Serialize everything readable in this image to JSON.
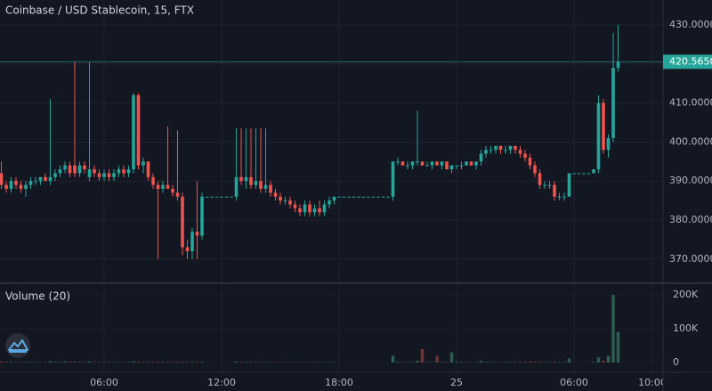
{
  "chart_data": {
    "type": "candlestick",
    "title": "Coinbase / USD Stablecoin, 15, FTX",
    "volume_title": "Volume (20)",
    "up_color": "#26a69a",
    "down_color": "#ef5350",
    "volume_up_color": "#2b5c4e",
    "volume_down_color": "#6b3338",
    "grid": true,
    "categories": [
      null,
      null,
      null,
      null,
      null,
      null,
      null,
      null,
      null,
      null,
      null,
      null,
      null,
      null,
      null,
      null,
      null,
      null,
      null,
      null,
      null,
      "06:00",
      null,
      null,
      null,
      null,
      null,
      null,
      null,
      null,
      null,
      null,
      null,
      null,
      null,
      null,
      null,
      null,
      null,
      null,
      null,
      null,
      null,
      null,
      null,
      "12:00",
      null,
      null,
      null,
      null,
      null,
      null,
      null,
      null,
      null,
      null,
      null,
      null,
      null,
      null,
      null,
      null,
      null,
      null,
      null,
      null,
      null,
      null,
      null,
      "18:00",
      null,
      null,
      null,
      null,
      null,
      null,
      null,
      null,
      null,
      null,
      null,
      null,
      null,
      null,
      null,
      null,
      null,
      null,
      null,
      null,
      null,
      null,
      null,
      "25",
      null,
      null,
      null,
      null,
      null,
      null,
      null,
      null,
      null,
      null,
      null,
      null,
      null,
      null,
      null,
      null,
      null,
      null,
      null,
      null,
      null,
      null,
      null,
      "06:00",
      null,
      null,
      null,
      null,
      null,
      null,
      null,
      null,
      null,
      null,
      null,
      null,
      null,
      null,
      null,
      "10:00"
    ],
    "ohlc": [
      [
        392,
        395,
        388,
        389
      ],
      [
        389,
        390,
        387,
        388
      ],
      [
        388,
        391,
        387,
        390
      ],
      [
        390,
        391,
        388,
        389
      ],
      [
        389,
        390,
        387,
        388
      ],
      [
        388,
        390,
        386,
        389
      ],
      [
        389,
        391,
        388,
        390
      ],
      [
        390,
        391,
        389,
        390
      ],
      [
        390,
        391,
        389,
        391
      ],
      [
        391,
        392,
        390,
        390
      ],
      [
        390,
        411,
        389,
        391
      ],
      [
        391,
        393,
        390,
        392
      ],
      [
        392,
        394,
        391,
        393
      ],
      [
        393,
        395,
        392,
        394
      ],
      [
        394,
        395,
        391,
        392
      ],
      [
        394,
        420.5,
        391,
        392
      ],
      [
        392,
        395,
        391,
        394
      ],
      [
        394,
        395,
        392,
        393
      ],
      [
        391,
        420.5,
        390,
        393
      ],
      [
        393,
        394,
        391,
        392
      ],
      [
        392,
        393,
        390,
        391
      ],
      [
        391,
        393,
        390,
        392
      ],
      [
        392,
        393,
        390,
        391
      ],
      [
        391,
        393,
        390,
        392
      ],
      [
        392,
        394,
        391,
        393
      ],
      [
        393,
        394,
        391,
        392
      ],
      [
        392,
        394,
        391,
        393
      ],
      [
        393,
        412.5,
        392,
        412
      ],
      [
        412,
        412.5,
        393,
        394
      ],
      [
        394,
        396,
        392,
        395
      ],
      [
        395,
        395,
        390,
        391
      ],
      [
        391,
        392,
        388,
        389
      ],
      [
        389,
        390,
        370,
        388
      ],
      [
        388,
        390,
        387,
        389
      ],
      [
        389,
        404,
        388,
        388
      ],
      [
        388,
        389,
        386,
        387
      ],
      [
        387,
        403,
        385,
        386
      ],
      [
        386,
        387,
        371,
        373
      ],
      [
        373,
        375,
        370,
        372
      ],
      [
        372,
        378,
        370,
        377
      ],
      [
        377,
        390,
        370,
        376
      ],
      [
        376,
        387,
        375,
        386
      ],
      [
        386,
        386,
        386,
        386
      ],
      [
        386,
        386,
        386,
        386
      ],
      [
        386,
        386,
        386,
        386
      ],
      [
        386,
        386,
        386,
        386
      ],
      [
        386,
        386,
        386,
        386
      ],
      [
        386,
        386,
        386,
        386
      ],
      [
        386,
        403.5,
        385,
        391
      ],
      [
        391,
        403.5,
        389,
        390
      ],
      [
        390,
        403.5,
        388,
        391
      ],
      [
        391,
        403.5,
        388,
        389
      ],
      [
        389,
        403.5,
        388,
        390
      ],
      [
        390,
        403.5,
        387,
        388
      ],
      [
        388,
        403.5,
        387,
        389
      ],
      [
        389,
        390,
        386,
        387
      ],
      [
        387,
        388,
        385,
        386
      ],
      [
        386,
        387,
        384,
        385
      ],
      [
        385,
        386,
        384,
        385
      ],
      [
        385,
        386,
        383,
        384
      ],
      [
        384,
        385,
        382,
        383
      ],
      [
        383,
        384,
        381,
        382
      ],
      [
        382,
        385,
        381,
        384
      ],
      [
        384,
        385,
        381,
        382
      ],
      [
        382,
        384,
        381,
        383
      ],
      [
        383,
        385,
        381,
        382
      ],
      [
        382,
        385,
        381,
        384
      ],
      [
        384,
        386,
        383,
        385
      ],
      [
        385,
        386,
        384,
        386
      ],
      [
        386,
        386,
        386,
        386
      ],
      [
        386,
        386,
        386,
        386
      ],
      [
        386,
        386,
        386,
        386
      ],
      [
        386,
        386,
        386,
        386
      ],
      [
        386,
        386,
        386,
        386
      ],
      [
        386,
        386,
        386,
        386
      ],
      [
        386,
        386,
        386,
        386
      ],
      [
        386,
        386,
        386,
        386
      ],
      [
        386,
        386,
        386,
        386
      ],
      [
        386,
        386,
        386,
        386
      ],
      [
        386,
        386,
        386,
        386
      ],
      [
        386,
        395,
        385,
        395
      ],
      [
        395,
        396,
        394,
        395
      ],
      [
        395,
        395,
        394,
        394
      ],
      [
        394,
        395,
        393,
        394
      ],
      [
        394,
        395,
        393,
        395
      ],
      [
        395,
        408,
        394,
        395
      ],
      [
        395,
        395,
        394,
        394
      ],
      [
        394,
        395,
        394,
        394
      ],
      [
        394,
        395,
        393,
        395
      ],
      [
        395,
        395,
        394,
        394
      ],
      [
        394,
        395,
        393,
        395
      ],
      [
        395,
        395,
        393,
        393
      ],
      [
        393,
        394,
        392,
        394
      ],
      [
        394,
        394,
        393,
        394
      ],
      [
        394,
        395,
        393,
        394
      ],
      [
        394,
        395,
        394,
        395
      ],
      [
        395,
        395,
        394,
        394
      ],
      [
        394,
        395,
        393,
        395
      ],
      [
        395,
        398,
        394,
        397
      ],
      [
        397,
        399,
        396,
        398
      ],
      [
        398,
        399,
        397,
        398
      ],
      [
        398,
        399,
        397,
        399
      ],
      [
        399,
        399,
        397,
        398
      ],
      [
        398,
        399,
        397,
        398
      ],
      [
        398,
        399,
        397,
        399
      ],
      [
        399,
        399,
        397,
        398
      ],
      [
        398,
        399,
        396,
        397
      ],
      [
        397,
        398,
        395,
        396
      ],
      [
        396,
        397,
        393,
        394
      ],
      [
        394,
        395,
        391,
        392
      ],
      [
        392,
        393,
        388,
        389
      ],
      [
        389,
        390,
        388,
        389
      ],
      [
        389,
        390,
        388,
        389
      ],
      [
        389,
        390,
        385,
        386
      ],
      [
        386,
        387,
        385,
        386
      ],
      [
        386,
        387,
        385,
        386
      ],
      [
        386,
        392,
        386,
        392
      ],
      [
        392,
        392,
        392,
        392
      ],
      [
        392,
        392,
        392,
        392
      ],
      [
        392,
        392,
        392,
        392
      ],
      [
        392,
        392,
        392,
        392
      ],
      [
        392,
        393,
        392,
        393
      ],
      [
        393,
        412,
        392,
        410
      ],
      [
        410,
        411,
        397,
        398
      ],
      [
        398,
        402,
        396,
        401
      ],
      [
        401,
        428,
        400,
        419
      ],
      [
        419,
        430,
        418,
        420.565
      ],
      null,
      null,
      null,
      null,
      null,
      null,
      null
    ],
    "volume": [
      3000,
      2000,
      2000,
      1500,
      1500,
      2000,
      1500,
      1000,
      1000,
      1000,
      4000,
      2000,
      2000,
      3000,
      2000,
      3000,
      2000,
      1500,
      3000,
      1500,
      1500,
      1000,
      1500,
      1500,
      1000,
      1000,
      1500,
      3000,
      2500,
      1500,
      2000,
      2000,
      2500,
      1500,
      2000,
      1500,
      2000,
      2500,
      2000,
      2000,
      1500,
      2000,
      0,
      0,
      0,
      0,
      0,
      0,
      3000,
      2000,
      2000,
      1500,
      1500,
      1500,
      1500,
      1000,
      1000,
      1000,
      1000,
      1000,
      1000,
      1500,
      1000,
      1000,
      1000,
      1000,
      1000,
      1000,
      1000,
      0,
      0,
      0,
      0,
      0,
      0,
      0,
      0,
      0,
      0,
      0,
      20000,
      2000,
      1500,
      1500,
      1500,
      5000,
      40000,
      2000,
      1500,
      20000,
      2000,
      1500,
      30000,
      2000,
      1500,
      1500,
      1000,
      1500,
      5000,
      2000,
      1500,
      1500,
      1000,
      1500,
      1500,
      2000,
      2000,
      2000,
      3000,
      2000,
      2500,
      1500,
      1500,
      3000,
      1500,
      1500,
      12000,
      0,
      0,
      0,
      0,
      2000,
      15000,
      5000,
      20000,
      200000,
      90000,
      null,
      null,
      null,
      null,
      null,
      null,
      null
    ],
    "ylim": [
      363.8,
      436.4
    ],
    "yticks": [
      {
        "value": 370,
        "label": "370.0000"
      },
      {
        "value": 380,
        "label": "380.0000"
      },
      {
        "value": 390,
        "label": "390.0000"
      },
      {
        "value": 400,
        "label": "400.0000"
      },
      {
        "value": 410,
        "label": "410.0000"
      },
      {
        "value": 420,
        "label": "420.0000"
      },
      {
        "value": 430,
        "label": "430.0000"
      }
    ],
    "volume_ylim": [
      -28900,
      234200
    ],
    "volume_yticks": [
      0,
      {
        "value": 100000,
        "label": "100K"
      },
      {
        "value": 200000,
        "label": "200K"
      }
    ],
    "last_price": {
      "value": 420.565,
      "label": "420.5650"
    }
  }
}
